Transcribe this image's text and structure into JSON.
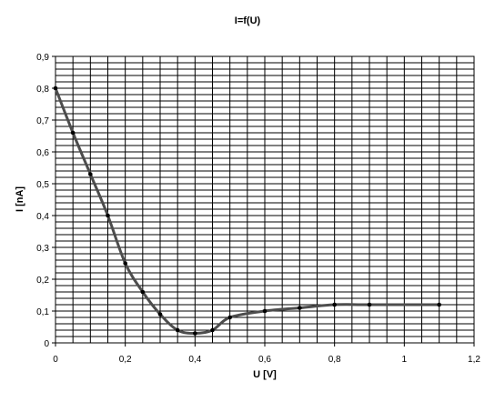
{
  "chart_data": {
    "type": "scatter",
    "title": "I=f(U)",
    "xlabel": "U [V]",
    "ylabel": "I [nA]",
    "xlim": [
      0,
      1.2
    ],
    "ylim": [
      0,
      0.9
    ],
    "x_ticks": [
      "0",
      "0,2",
      "0,4",
      "0,6",
      "0,8",
      "1",
      "1,2"
    ],
    "y_ticks": [
      "0",
      "0,1",
      "0,2",
      "0,3",
      "0,4",
      "0,5",
      "0,6",
      "0,7",
      "0,8",
      "0,9"
    ],
    "grid": true,
    "legend": "none",
    "line_color": "#4d4d4d",
    "marker_color": "#000000",
    "series": [
      {
        "x": [
          0.0,
          0.05,
          0.1,
          0.15,
          0.2,
          0.25,
          0.3,
          0.35,
          0.4,
          0.45,
          0.5,
          0.6,
          0.7,
          0.8,
          0.9,
          1.1
        ],
        "y": [
          0.8,
          0.66,
          0.53,
          0.4,
          0.25,
          0.16,
          0.09,
          0.04,
          0.03,
          0.04,
          0.08,
          0.1,
          0.11,
          0.12,
          0.12,
          0.12
        ]
      }
    ]
  }
}
